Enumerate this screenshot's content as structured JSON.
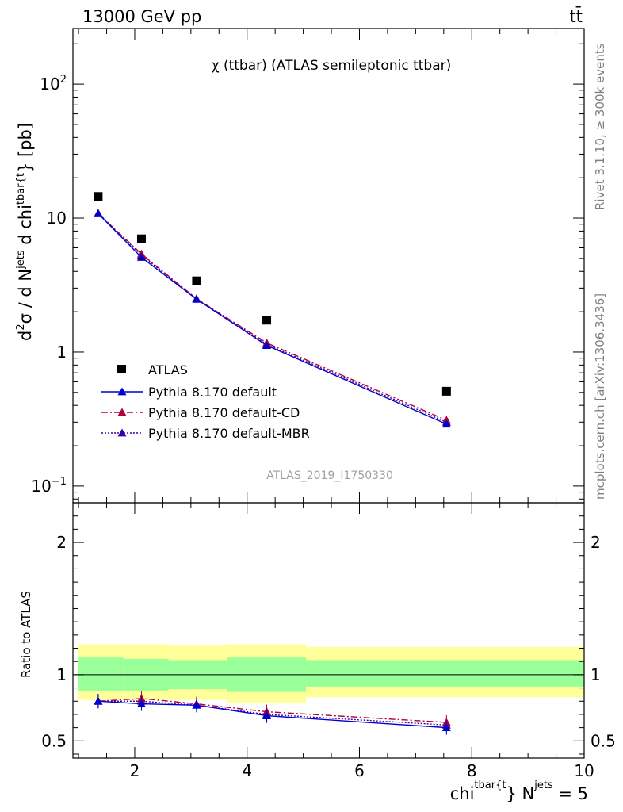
{
  "header": {
    "left": "13000 GeV pp",
    "right": "tt̄"
  },
  "side_labels": {
    "rivet": "Rivet 3.1.10, ≥ 300k events",
    "mcplots": "mcplots.cern.ch [arXiv:1306.3436]"
  },
  "chart_data": {
    "type": "scatter",
    "title": "χ (ttbar) (ATLAS semileptonic ttbar)",
    "analysis_id": "ATLAS_2019_I1750330",
    "xlabel": {
      "main": "chi",
      "sup1": "tbar{t",
      "mid": "} N",
      "sup2": "jets",
      "tail": " = 5"
    },
    "ylabel": {
      "p1": "d",
      "s1": "2",
      "p2": "σ / d N",
      "s2": "jets",
      "p3": " d chi",
      "s3": "tbar{t",
      "p4": "} [pb]"
    },
    "ratio_ylabel": "Ratio to ATLAS",
    "xlim": [
      0.9,
      10.0
    ],
    "ylim_main": [
      0.075,
      260
    ],
    "yscale_main": "log",
    "ylim_ratio": [
      0.37,
      2.3
    ],
    "main_y_ticks": [
      {
        "value": 100,
        "base": "10",
        "exp": "2"
      },
      {
        "value": 10,
        "base": "10",
        "exp": ""
      },
      {
        "value": 1,
        "base": "1",
        "exp": ""
      },
      {
        "value": 0.1,
        "base": "10",
        "exp": "−1"
      }
    ],
    "x_ticks": [
      2,
      4,
      6,
      8,
      10
    ],
    "ratio_y_ticks": [
      0.5,
      1,
      2
    ],
    "legend_position": "lower-left",
    "bins": [
      {
        "lo": 1.0,
        "hi": 1.8
      },
      {
        "lo": 1.8,
        "hi": 2.6
      },
      {
        "lo": 2.6,
        "hi": 3.65
      },
      {
        "lo": 3.65,
        "hi": 5.05
      },
      {
        "lo": 5.05,
        "hi": 10.0
      }
    ],
    "x": [
      1.35,
      2.12,
      3.1,
      4.35,
      7.55
    ],
    "data": {
      "name": "ATLAS",
      "values": [
        14.5,
        7.0,
        3.4,
        1.73,
        0.51
      ],
      "band_inner": [
        [
          0.88,
          1.13
        ],
        [
          0.88,
          1.12
        ],
        [
          0.89,
          1.11
        ],
        [
          0.87,
          1.13
        ],
        [
          0.91,
          1.11
        ]
      ],
      "band_outer": [
        [
          0.81,
          1.23
        ],
        [
          0.81,
          1.23
        ],
        [
          0.81,
          1.22
        ],
        [
          0.79,
          1.23
        ],
        [
          0.83,
          1.21
        ]
      ]
    },
    "series": [
      {
        "name": "Pythia 8.170 default",
        "color": "#0000cc",
        "dash": "",
        "values": [
          10.8,
          5.1,
          2.48,
          1.12,
          0.29
        ],
        "ratio": [
          0.8,
          0.78,
          0.77,
          0.69,
          0.6
        ]
      },
      {
        "name": "Pythia 8.170 default-CD",
        "color": "#b0003c",
        "dash": "8,3,2,3",
        "values": [
          10.8,
          5.4,
          2.5,
          1.17,
          0.31
        ],
        "ratio": [
          0.8,
          0.82,
          0.78,
          0.72,
          0.64
        ]
      },
      {
        "name": "Pythia 8.170 default-MBR",
        "color": "#3a00a8",
        "dash": "2,2",
        "values": [
          10.9,
          5.3,
          2.5,
          1.14,
          0.3
        ],
        "ratio": [
          0.8,
          0.8,
          0.77,
          0.7,
          0.62
        ]
      }
    ],
    "colors": {
      "band_inner": "#99ff99",
      "band_outer": "#ffff99",
      "data": "#000000"
    }
  }
}
